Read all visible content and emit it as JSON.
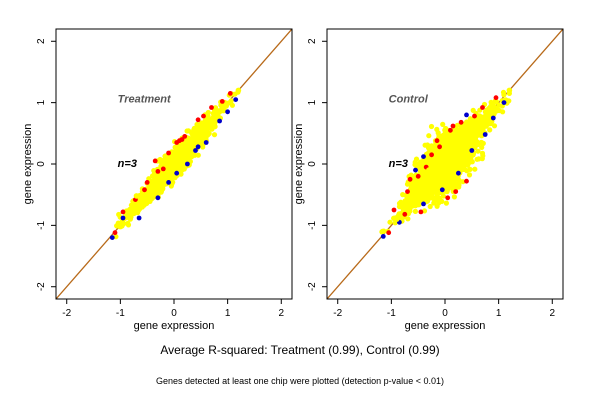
{
  "chart_data": [
    {
      "type": "scatter",
      "panel_label": "Treatment",
      "annotation": "n=3",
      "xlabel": "gene expression",
      "ylabel": "gene expression",
      "xlim": [
        -2.2,
        2.2
      ],
      "ylim": [
        -2.2,
        2.2
      ],
      "xticks": [
        "-2",
        "-1",
        "0",
        "1",
        "2"
      ],
      "yticks": [
        "-2",
        "-1",
        "0",
        "1",
        "2"
      ],
      "identity_line": true,
      "grid": false,
      "colors": {
        "main": "#ffff00",
        "high": "#ff0000",
        "low": "#0000cc",
        "line": "#b86a1a",
        "label": "#555555"
      },
      "points": [
        {
          "x": -1.1,
          "y": -1.12,
          "color": "high"
        },
        {
          "x": -0.95,
          "y": -0.78,
          "color": "high"
        },
        {
          "x": -0.5,
          "y": -0.3,
          "color": "high"
        },
        {
          "x": -0.3,
          "y": -0.12,
          "color": "high"
        },
        {
          "x": -0.35,
          "y": 0.05,
          "color": "high"
        },
        {
          "x": -0.1,
          "y": 0.18,
          "color": "high"
        },
        {
          "x": 0.05,
          "y": 0.35,
          "color": "high"
        },
        {
          "x": 0.2,
          "y": 0.45,
          "color": "high"
        },
        {
          "x": 0.1,
          "y": 0.38,
          "color": "high"
        },
        {
          "x": 0.45,
          "y": 0.72,
          "color": "high"
        },
        {
          "x": 0.55,
          "y": 0.78,
          "color": "high"
        },
        {
          "x": 0.7,
          "y": 0.92,
          "color": "high"
        },
        {
          "x": 0.9,
          "y": 1.02,
          "color": "high"
        },
        {
          "x": 1.05,
          "y": 1.15,
          "color": "high"
        },
        {
          "x": 0.15,
          "y": 0.4,
          "color": "high"
        },
        {
          "x": -0.55,
          "y": -0.42,
          "color": "high"
        },
        {
          "x": -0.72,
          "y": -0.58,
          "color": "high"
        },
        {
          "x": -0.2,
          "y": -0.08,
          "color": "high"
        },
        {
          "x": -0.95,
          "y": -0.88,
          "color": "low"
        },
        {
          "x": -0.65,
          "y": -0.88,
          "color": "low"
        },
        {
          "x": -1.15,
          "y": -1.2,
          "color": "low"
        },
        {
          "x": 0.05,
          "y": -0.15,
          "color": "low"
        },
        {
          "x": -0.3,
          "y": -0.55,
          "color": "low"
        },
        {
          "x": -0.1,
          "y": -0.3,
          "color": "low"
        },
        {
          "x": 0.4,
          "y": 0.22,
          "color": "low"
        },
        {
          "x": 0.45,
          "y": 0.28,
          "color": "low"
        },
        {
          "x": 0.6,
          "y": 0.35,
          "color": "low"
        },
        {
          "x": 0.85,
          "y": 0.7,
          "color": "low"
        },
        {
          "x": 1.0,
          "y": 0.85,
          "color": "low"
        },
        {
          "x": 0.25,
          "y": 0.0,
          "color": "low"
        },
        {
          "x": 1.15,
          "y": 1.05,
          "color": "low"
        },
        {
          "x": -0.7,
          "y": -0.52,
          "color": "main"
        },
        {
          "x": -0.45,
          "y": -0.42,
          "color": "main"
        },
        {
          "x": -0.2,
          "y": -0.25,
          "color": "main"
        },
        {
          "x": 0.0,
          "y": 0.05,
          "color": "main"
        },
        {
          "x": 0.3,
          "y": 0.3,
          "color": "main"
        },
        {
          "x": 0.6,
          "y": 0.6,
          "color": "main"
        },
        {
          "x": 0.9,
          "y": 0.9,
          "color": "main"
        },
        {
          "x": 1.2,
          "y": 1.2,
          "color": "main"
        },
        {
          "x": -1.0,
          "y": -1.02,
          "color": "main"
        },
        {
          "x": -0.35,
          "y": -0.2,
          "color": "main"
        },
        {
          "x": 0.25,
          "y": 0.35,
          "color": "main"
        },
        {
          "x": 0.5,
          "y": 0.55,
          "color": "main"
        },
        {
          "x": 0.8,
          "y": 0.82,
          "color": "main"
        },
        {
          "x": 1.05,
          "y": 1.0,
          "color": "main"
        }
      ]
    },
    {
      "type": "scatter",
      "panel_label": "Control",
      "annotation": "n=3",
      "xlabel": "gene expression",
      "ylabel": "gene expression",
      "xlim": [
        -2.2,
        2.2
      ],
      "ylim": [
        -2.2,
        2.2
      ],
      "xticks": [
        "-2",
        "-1",
        "0",
        "1",
        "2"
      ],
      "yticks": [
        "-2",
        "-1",
        "0",
        "1",
        "2"
      ],
      "identity_line": true,
      "grid": false,
      "colors": {
        "main": "#ffff00",
        "high": "#ff0000",
        "low": "#0000cc",
        "line": "#b86a1a",
        "label": "#555555"
      },
      "points": [
        {
          "x": -1.05,
          "y": -1.12,
          "color": "high"
        },
        {
          "x": -0.95,
          "y": -0.75,
          "color": "high"
        },
        {
          "x": -0.7,
          "y": -0.45,
          "color": "high"
        },
        {
          "x": -0.5,
          "y": -0.2,
          "color": "high"
        },
        {
          "x": -0.35,
          "y": -0.05,
          "color": "high"
        },
        {
          "x": -0.25,
          "y": 0.15,
          "color": "high"
        },
        {
          "x": -0.1,
          "y": 0.28,
          "color": "high"
        },
        {
          "x": 0.1,
          "y": 0.55,
          "color": "high"
        },
        {
          "x": 0.3,
          "y": 0.68,
          "color": "high"
        },
        {
          "x": 0.15,
          "y": 0.62,
          "color": "high"
        },
        {
          "x": 0.55,
          "y": 0.78,
          "color": "high"
        },
        {
          "x": 0.7,
          "y": 0.92,
          "color": "high"
        },
        {
          "x": 0.95,
          "y": 1.08,
          "color": "high"
        },
        {
          "x": -0.15,
          "y": 0.38,
          "color": "high"
        },
        {
          "x": -0.75,
          "y": -0.82,
          "color": "high"
        },
        {
          "x": -0.45,
          "y": -0.78,
          "color": "high"
        },
        {
          "x": 0.05,
          "y": -0.55,
          "color": "high"
        },
        {
          "x": 0.2,
          "y": -0.45,
          "color": "high"
        },
        {
          "x": 0.4,
          "y": -0.28,
          "color": "high"
        },
        {
          "x": -0.65,
          "y": -0.25,
          "color": "high"
        },
        {
          "x": -1.15,
          "y": -1.18,
          "color": "low"
        },
        {
          "x": -0.85,
          "y": -0.95,
          "color": "low"
        },
        {
          "x": -0.4,
          "y": -0.65,
          "color": "low"
        },
        {
          "x": -0.55,
          "y": -0.1,
          "color": "low"
        },
        {
          "x": -0.4,
          "y": 0.12,
          "color": "low"
        },
        {
          "x": -0.05,
          "y": -0.42,
          "color": "low"
        },
        {
          "x": 0.25,
          "y": -0.15,
          "color": "low"
        },
        {
          "x": 0.5,
          "y": 0.22,
          "color": "low"
        },
        {
          "x": 0.75,
          "y": 0.48,
          "color": "low"
        },
        {
          "x": 0.9,
          "y": 0.75,
          "color": "low"
        },
        {
          "x": 1.1,
          "y": 1.0,
          "color": "low"
        },
        {
          "x": 0.4,
          "y": 0.8,
          "color": "low"
        },
        {
          "x": -0.6,
          "y": -0.55,
          "color": "main"
        },
        {
          "x": -0.3,
          "y": -0.1,
          "color": "main"
        },
        {
          "x": 0.0,
          "y": 0.1,
          "color": "main"
        },
        {
          "x": 0.3,
          "y": 0.35,
          "color": "main"
        },
        {
          "x": 0.6,
          "y": 0.55,
          "color": "main"
        },
        {
          "x": 0.9,
          "y": 0.95,
          "color": "main"
        },
        {
          "x": 1.2,
          "y": 1.2,
          "color": "main"
        },
        {
          "x": -0.9,
          "y": -0.9,
          "color": "main"
        },
        {
          "x": -0.15,
          "y": -0.35,
          "color": "main"
        },
        {
          "x": 0.45,
          "y": 0.05,
          "color": "main"
        },
        {
          "x": 0.15,
          "y": 0.45,
          "color": "main"
        },
        {
          "x": 0.75,
          "y": 0.65,
          "color": "main"
        },
        {
          "x": -0.45,
          "y": -0.3,
          "color": "main"
        }
      ]
    }
  ],
  "caption": {
    "main": "Average R-squared: Treatment (0.99), Control (0.99)",
    "note": "Genes detected at least one chip were plotted (detection p-value < 0.01)"
  }
}
